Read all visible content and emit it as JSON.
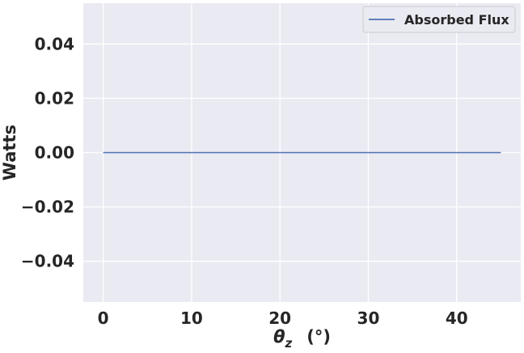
{
  "chart_data": {
    "type": "line",
    "xlabel_main": "θ",
    "xlabel_sub": "z",
    "xlabel_unit": "(°)",
    "ylabel": "Watts",
    "xlim": [
      -2.25,
      47.25
    ],
    "ylim": [
      -0.055,
      0.055
    ],
    "xticks": [
      0,
      10,
      20,
      30,
      40
    ],
    "xtick_labels": [
      "0",
      "10",
      "20",
      "30",
      "40"
    ],
    "yticks": [
      -0.04,
      -0.02,
      0.0,
      0.02,
      0.04
    ],
    "ytick_labels": [
      "−0.04",
      "−0.02",
      "0.00",
      "0.02",
      "0.04"
    ],
    "grid": true,
    "legend_placement": "top-right",
    "series": [
      {
        "name": "Absorbed Flux",
        "color": "#4c72b0",
        "x": [
          0,
          5,
          10,
          15,
          20,
          25,
          30,
          35,
          40,
          45
        ],
        "y": [
          0,
          0,
          0,
          0,
          0,
          0,
          0,
          0,
          0,
          0
        ]
      }
    ],
    "colors": {
      "plot_background": "#eaeaf2",
      "grid": "#ffffff",
      "text": "#262626"
    }
  }
}
